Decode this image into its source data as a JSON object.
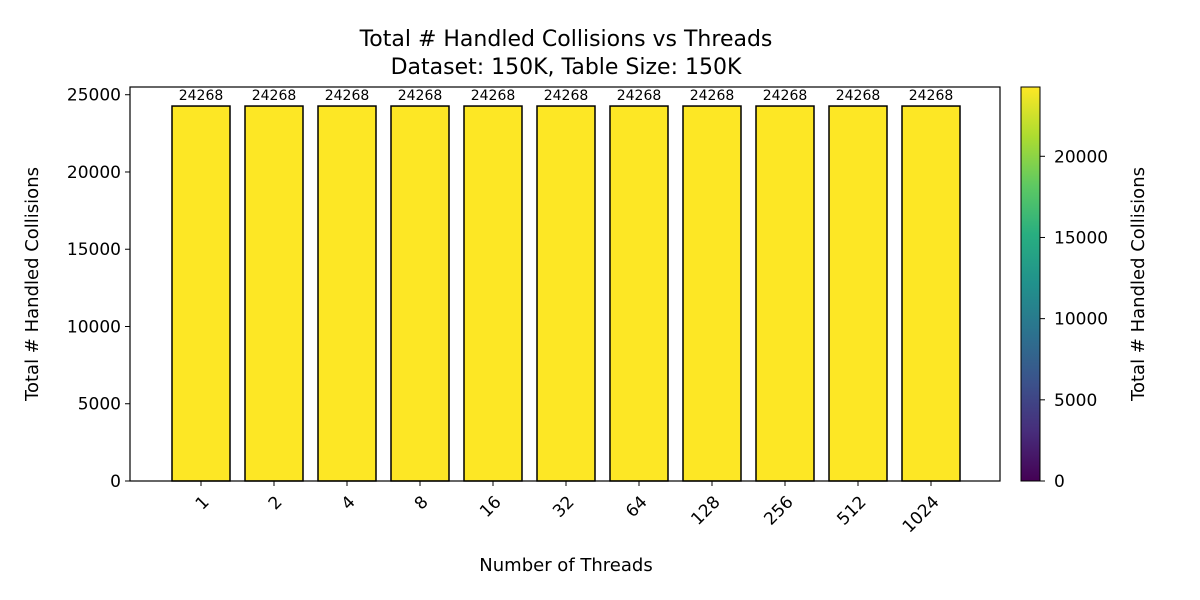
{
  "chart_data": {
    "type": "bar",
    "title": "Total # Handled Collisions vs Threads",
    "subtitle": "Dataset: 150K, Table Size: 150K",
    "xlabel": "Number of Threads",
    "ylabel": "Total # Handled Collisions",
    "categories": [
      "1",
      "2",
      "4",
      "8",
      "16",
      "32",
      "64",
      "128",
      "256",
      "512",
      "1024"
    ],
    "values": [
      24268,
      24268,
      24268,
      24268,
      24268,
      24268,
      24268,
      24268,
      24268,
      24268,
      24268
    ],
    "data_labels": [
      "24268",
      "24268",
      "24268",
      "24268",
      "24268",
      "24268",
      "24268",
      "24268",
      "24268",
      "24268",
      "24268"
    ],
    "ylim": [
      0,
      25500
    ],
    "yticks": [
      0,
      5000,
      10000,
      15000,
      20000,
      25000
    ],
    "bar_color": "#fde725",
    "bar_edge_color": "#000000",
    "grid": false,
    "colorbar": {
      "label": "Total # Handled Collisions",
      "colormap": "viridis",
      "range": [
        0,
        24268
      ],
      "ticks": [
        0,
        5000,
        10000,
        15000,
        20000
      ]
    }
  }
}
